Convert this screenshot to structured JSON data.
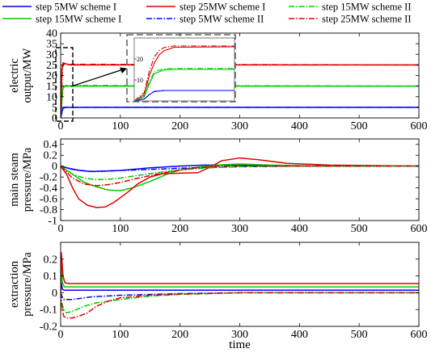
{
  "legend": {
    "entries": [
      {
        "label": "step 5MW scheme I",
        "color": "#0000ff",
        "dash": "solid"
      },
      {
        "label": "step 25MW scheme I",
        "color": "#e00000",
        "dash": "solid"
      },
      {
        "label": "step 15MW scheme II",
        "color": "#00cc00",
        "dash": "dashdot"
      },
      {
        "label": "step 15MW scheme I",
        "color": "#00cc00",
        "dash": "solid"
      },
      {
        "label": "step 5MW scheme II",
        "color": "#0000ff",
        "dash": "dashdot"
      },
      {
        "label": "step 25MW scheme II",
        "color": "#e00000",
        "dash": "dashdot"
      }
    ]
  },
  "chart_data": [
    {
      "type": "line",
      "ylabel_lines": [
        "electric",
        "output/MW"
      ],
      "xlabel": "",
      "xlim": [
        0,
        600
      ],
      "ylim": [
        0,
        40
      ],
      "xticks": [
        0,
        100,
        200,
        300,
        400,
        500,
        600
      ],
      "yticks": [
        0,
        5,
        10,
        15,
        20,
        25,
        30,
        35,
        40
      ],
      "series": [
        {
          "name": "step 5MW scheme I",
          "color": "#0000ff",
          "dash": "solid",
          "x": [
            0,
            3,
            5,
            8,
            600
          ],
          "y": [
            0,
            4,
            5,
            5,
            5
          ]
        },
        {
          "name": "step 15MW scheme I",
          "color": "#00cc00",
          "dash": "solid",
          "x": [
            0,
            3,
            5,
            8,
            600
          ],
          "y": [
            0,
            13,
            15,
            15,
            15
          ]
        },
        {
          "name": "step 25MW scheme I",
          "color": "#e00000",
          "dash": "solid",
          "x": [
            0,
            2,
            4,
            7,
            15,
            600
          ],
          "y": [
            0,
            23,
            26,
            25.7,
            25,
            25
          ]
        },
        {
          "name": "step 5MW scheme II",
          "color": "#0000ff",
          "dash": "dashdot",
          "x": [
            0,
            4,
            8,
            600
          ],
          "y": [
            0,
            4.5,
            5,
            5
          ]
        },
        {
          "name": "step 15MW scheme II",
          "color": "#00cc00",
          "dash": "dashdot",
          "x": [
            0,
            4,
            8,
            600
          ],
          "y": [
            0,
            14,
            15.3,
            15
          ]
        },
        {
          "name": "step 25MW scheme II",
          "color": "#e00000",
          "dash": "dashdot",
          "x": [
            0,
            3,
            6,
            10,
            600
          ],
          "y": [
            0,
            24,
            25.6,
            25.3,
            25
          ]
        }
      ],
      "inset": {
        "xlim": [
          0,
          20
        ],
        "ylim": [
          0,
          30
        ],
        "yticks": [
          10,
          20
        ],
        "series": [
          {
            "name": "step 5MW scheme I",
            "color": "#0000ff",
            "dash": "solid",
            "x": [
              0,
              2,
              3,
              4,
              6,
              8,
              20
            ],
            "y": [
              0,
              1,
              3,
              4.5,
              5,
              5,
              5
            ]
          },
          {
            "name": "step 15MW scheme I",
            "color": "#00cc00",
            "dash": "solid",
            "x": [
              0,
              2,
              3,
              4,
              6,
              8,
              20
            ],
            "y": [
              0,
              2,
              8,
              13,
              14.8,
              15,
              15
            ]
          },
          {
            "name": "step 25MW scheme I",
            "color": "#e00000",
            "dash": "solid",
            "x": [
              0,
              2,
              3,
              4,
              5,
              6,
              8,
              20
            ],
            "y": [
              0,
              3,
              12,
              18,
              22,
              24,
              25.6,
              25.8
            ]
          },
          {
            "name": "step 5MW scheme II",
            "color": "#0000ff",
            "dash": "dashdot",
            "x": [
              0,
              2,
              3,
              4,
              6,
              8,
              20
            ],
            "y": [
              0,
              1,
              3,
              4.6,
              5,
              5,
              5
            ]
          },
          {
            "name": "step 15MW scheme II",
            "color": "#00cc00",
            "dash": "dashdot",
            "x": [
              0,
              2,
              3,
              4,
              6,
              8,
              20
            ],
            "y": [
              0,
              2.5,
              9,
              14,
              15.3,
              15.5,
              15.5
            ]
          },
          {
            "name": "step 25MW scheme II",
            "color": "#e00000",
            "dash": "dashdot",
            "x": [
              0,
              2,
              3,
              4,
              5,
              6,
              8,
              20
            ],
            "y": [
              0,
              4,
              14,
              21,
              24,
              25.5,
              26.2,
              26.2
            ]
          }
        ]
      }
    },
    {
      "type": "line",
      "ylabel_lines": [
        "main steam",
        "pressure/MPa"
      ],
      "xlabel": "",
      "xlim": [
        0,
        600
      ],
      "ylim": [
        -1,
        0.5
      ],
      "xticks": [
        0,
        100,
        200,
        300,
        400,
        500,
        600
      ],
      "yticks": [
        -1,
        -0.8,
        -0.6,
        -0.4,
        -0.2,
        0,
        0.2,
        0.4
      ],
      "ytick_labels": [
        "-1",
        "-0.8",
        "-0.6",
        "-0.4",
        "-0.2",
        "0",
        "0.2",
        "0.4"
      ],
      "series": [
        {
          "name": "step 5MW scheme I",
          "color": "#0000ff",
          "dash": "solid",
          "x": [
            0,
            20,
            50,
            100,
            150,
            200,
            240,
            280,
            350,
            450,
            600
          ],
          "y": [
            0,
            -0.06,
            -0.1,
            -0.08,
            -0.03,
            0.0,
            0.02,
            0.02,
            0.01,
            0.0,
            0.0
          ]
        },
        {
          "name": "step 15MW scheme I",
          "color": "#00cc00",
          "dash": "solid",
          "x": [
            0,
            20,
            40,
            60,
            80,
            100,
            120,
            150,
            180,
            200,
            230,
            260,
            300,
            350,
            450,
            600
          ],
          "y": [
            0,
            -0.15,
            -0.3,
            -0.38,
            -0.44,
            -0.45,
            -0.4,
            -0.28,
            -0.14,
            -0.07,
            -0.02,
            0.02,
            0.04,
            0.02,
            0.0,
            0.0
          ]
        },
        {
          "name": "step 25MW scheme I",
          "color": "#e00000",
          "dash": "solid",
          "x": [
            0,
            10,
            20,
            30,
            45,
            60,
            75,
            90,
            110,
            130,
            150,
            170,
            200,
            230,
            250,
            270,
            300,
            330,
            380,
            450,
            600
          ],
          "y": [
            0,
            -0.15,
            -0.4,
            -0.6,
            -0.72,
            -0.76,
            -0.75,
            -0.66,
            -0.5,
            -0.32,
            -0.2,
            -0.14,
            -0.13,
            -0.12,
            -0.02,
            0.1,
            0.15,
            0.12,
            0.05,
            0.02,
            0.0
          ]
        },
        {
          "name": "step 5MW scheme II",
          "color": "#0000ff",
          "dash": "dashdot",
          "x": [
            0,
            30,
            60,
            100,
            150,
            200,
            250,
            300,
            400,
            600
          ],
          "y": [
            0,
            -0.08,
            -0.1,
            -0.08,
            -0.06,
            -0.04,
            -0.02,
            -0.01,
            0.0,
            0.0
          ]
        },
        {
          "name": "step 15MW scheme II",
          "color": "#00cc00",
          "dash": "dashdot",
          "x": [
            0,
            20,
            40,
            60,
            80,
            100,
            130,
            160,
            200,
            250,
            300,
            400,
            600
          ],
          "y": [
            0,
            -0.15,
            -0.22,
            -0.25,
            -0.24,
            -0.22,
            -0.17,
            -0.12,
            -0.07,
            -0.03,
            -0.01,
            0.0,
            0.0
          ]
        },
        {
          "name": "step 25MW scheme II",
          "color": "#e00000",
          "dash": "dashdot",
          "x": [
            0,
            20,
            40,
            60,
            80,
            100,
            130,
            160,
            200,
            230,
            260,
            300,
            400,
            600
          ],
          "y": [
            0,
            -0.22,
            -0.33,
            -0.36,
            -0.34,
            -0.3,
            -0.22,
            -0.15,
            -0.07,
            -0.03,
            0.0,
            0.01,
            0.0,
            0.0
          ]
        }
      ]
    },
    {
      "type": "line",
      "ylabel_lines": [
        "extraction",
        "pressure/MPa"
      ],
      "xlabel": "time",
      "xlim": [
        0,
        600
      ],
      "ylim": [
        -0.2,
        0.3
      ],
      "xticks": [
        0,
        100,
        200,
        300,
        400,
        500,
        600
      ],
      "yticks": [
        -0.2,
        -0.1,
        0,
        0.1,
        0.2
      ],
      "ytick_labels": [
        "-0.2",
        "-0.1",
        "0",
        "0.1",
        "0.2"
      ],
      "series": [
        {
          "name": "step 5MW scheme I",
          "color": "#0000ff",
          "dash": "solid",
          "x": [
            0,
            1,
            3,
            6,
            12,
            600
          ],
          "y": [
            0,
            0.06,
            0.02,
            0.015,
            0.015,
            0.015
          ]
        },
        {
          "name": "step 15MW scheme I",
          "color": "#00cc00",
          "dash": "solid",
          "x": [
            0,
            1,
            3,
            6,
            12,
            600
          ],
          "y": [
            0,
            0.16,
            0.06,
            0.035,
            0.035,
            0.035
          ]
        },
        {
          "name": "step 25MW scheme I",
          "color": "#e00000",
          "dash": "solid",
          "x": [
            0,
            1,
            2,
            4,
            7,
            12,
            600
          ],
          "y": [
            0,
            0.24,
            0.2,
            0.1,
            0.06,
            0.055,
            0.055
          ]
        },
        {
          "name": "step 5MW scheme II",
          "color": "#0000ff",
          "dash": "dashdot",
          "x": [
            0,
            2,
            5,
            20,
            50,
            100,
            150,
            200,
            300,
            600
          ],
          "y": [
            0,
            -0.02,
            -0.04,
            -0.04,
            -0.025,
            -0.015,
            -0.01,
            -0.005,
            0.0,
            0.0
          ]
        },
        {
          "name": "step 15MW scheme II",
          "color": "#00cc00",
          "dash": "dashdot",
          "x": [
            0,
            2,
            5,
            10,
            20,
            40,
            60,
            100,
            150,
            200,
            300,
            600
          ],
          "y": [
            0,
            -0.06,
            -0.1,
            -0.12,
            -0.11,
            -0.08,
            -0.06,
            -0.04,
            -0.02,
            -0.01,
            0.0,
            0.0
          ]
        },
        {
          "name": "step 25MW scheme II",
          "color": "#e00000",
          "dash": "dashdot",
          "x": [
            0,
            2,
            5,
            10,
            20,
            30,
            45,
            60,
            80,
            100,
            150,
            200,
            300,
            600
          ],
          "y": [
            0,
            -0.08,
            -0.14,
            -0.15,
            -0.15,
            -0.14,
            -0.12,
            -0.08,
            -0.05,
            -0.03,
            -0.015,
            -0.008,
            0.0,
            0.0
          ]
        }
      ]
    }
  ]
}
